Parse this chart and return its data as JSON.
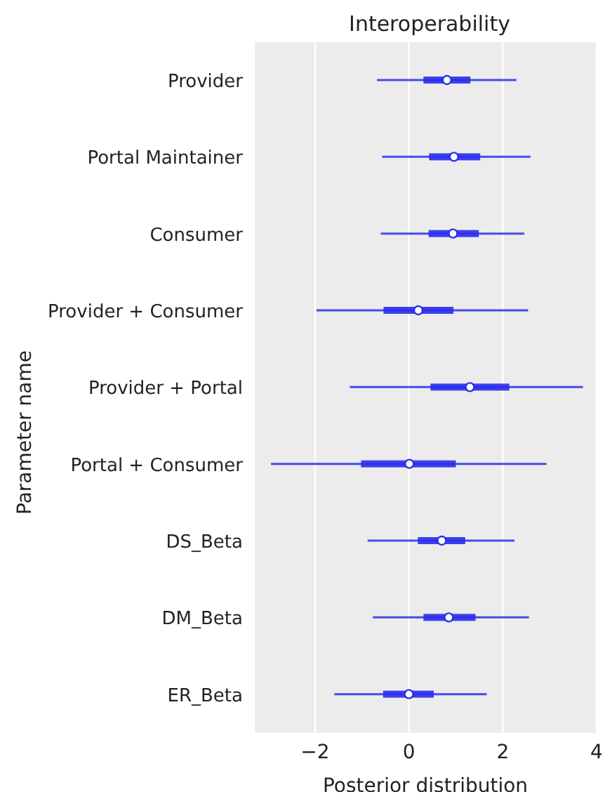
{
  "chart_data": {
    "type": "box",
    "orientation": "horizontal",
    "title": "Interoperability",
    "xlabel": "Posterior distribution",
    "ylabel": "Parameter name",
    "categories": [
      "Provider",
      "Portal Maintainer",
      "Consumer",
      "Provider + Consumer",
      "Provider + Portal",
      "Portal + Consumer",
      "DS_Beta",
      "DM_Beta",
      "ER_Beta"
    ],
    "color": "#2a2eec",
    "boxes": [
      {
        "low": -0.68,
        "q1": 0.31,
        "median": 0.81,
        "q3": 1.31,
        "high": 2.29
      },
      {
        "low": -0.57,
        "q1": 0.43,
        "median": 0.96,
        "q3": 1.52,
        "high": 2.59
      },
      {
        "low": -0.6,
        "q1": 0.42,
        "median": 0.94,
        "q3": 1.49,
        "high": 2.46
      },
      {
        "low": -1.97,
        "q1": -0.54,
        "median": 0.2,
        "q3": 0.95,
        "high": 2.54
      },
      {
        "low": -1.26,
        "q1": 0.46,
        "median": 1.3,
        "q3": 2.14,
        "high": 3.71
      },
      {
        "low": -2.94,
        "q1": -1.02,
        "median": 0.01,
        "q3": 1.0,
        "high": 2.93
      },
      {
        "low": -0.88,
        "q1": 0.19,
        "median": 0.7,
        "q3": 1.2,
        "high": 2.25
      },
      {
        "low": -0.77,
        "q1": 0.31,
        "median": 0.85,
        "q3": 1.42,
        "high": 2.56
      },
      {
        "low": -1.59,
        "q1": -0.55,
        "median": 0.0,
        "q3": 0.53,
        "high": 1.66
      }
    ],
    "xlim": [
      -3.3,
      4
    ],
    "xticks": [
      {
        "value": -2,
        "label": "−2"
      },
      0,
      2,
      4
    ],
    "grid": "x",
    "marker": "circle"
  }
}
